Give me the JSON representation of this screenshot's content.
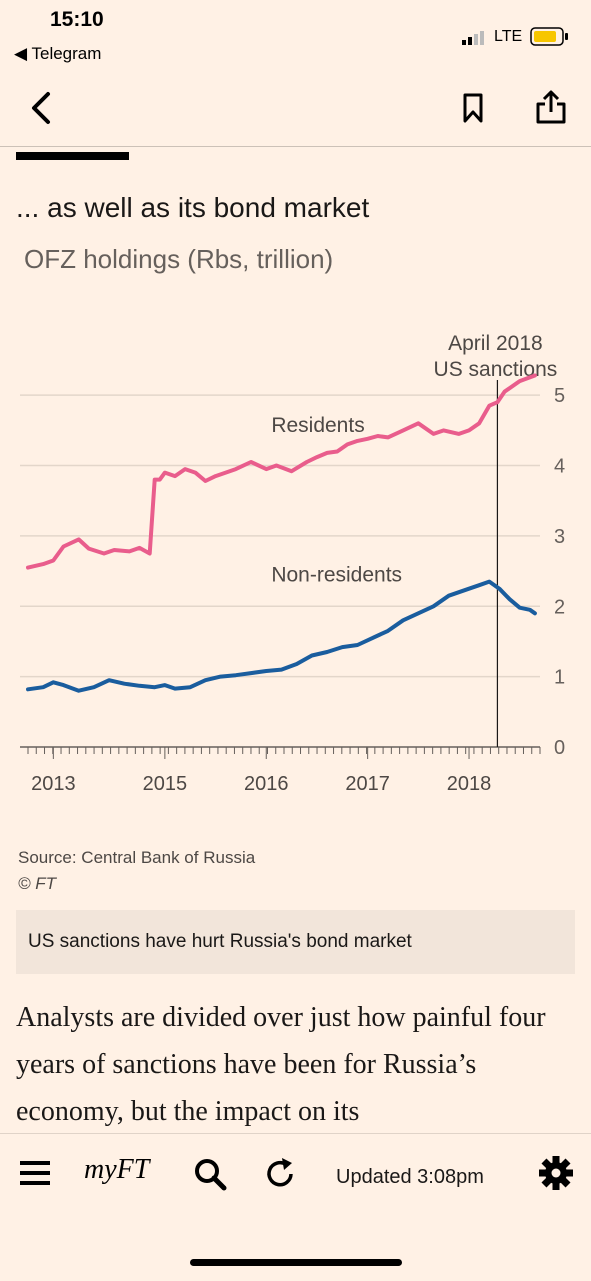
{
  "status_bar": {
    "time": "15:10",
    "back_app": "◀ Telegram",
    "network": "LTE"
  },
  "header": {
    "back_icon": "chevron-left-icon",
    "bookmark_icon": "bookmark-icon",
    "share_icon": "share-icon"
  },
  "figure": {
    "title": "... as well as its bond market",
    "subtitle": "OFZ holdings (Rbs, trillion)",
    "source": "Source: Central Bank of Russia",
    "copyright": "© FT"
  },
  "chart_data": {
    "type": "line",
    "x_ticks": [
      "2013",
      "2015",
      "2016",
      "2017",
      "2018"
    ],
    "x_tick_values": [
      2013.0,
      2014.1,
      2015.1,
      2016.1,
      2017.1
    ],
    "y_ticks": [
      "0",
      "1",
      "2",
      "3",
      "4",
      "5"
    ],
    "ylim": [
      0,
      5.5
    ],
    "xlim": [
      2012.75,
      2017.8
    ],
    "grid": true,
    "y_axis_side": "right",
    "annotation": {
      "x": 2017.38,
      "lines": [
        "April 2018",
        "US sanctions"
      ]
    },
    "series": [
      {
        "name": "Residents",
        "color": "#e95d8c",
        "x": [
          2012.75,
          2012.9,
          2013.0,
          2013.1,
          2013.25,
          2013.35,
          2013.5,
          2013.6,
          2013.75,
          2013.85,
          2013.95,
          2014.0,
          2014.05,
          2014.1,
          2014.2,
          2014.3,
          2014.4,
          2014.5,
          2014.6,
          2014.7,
          2014.8,
          2014.95,
          2015.1,
          2015.2,
          2015.35,
          2015.5,
          2015.6,
          2015.7,
          2015.8,
          2015.9,
          2016.0,
          2016.1,
          2016.2,
          2016.3,
          2016.45,
          2016.6,
          2016.75,
          2016.85,
          2017.0,
          2017.1,
          2017.2,
          2017.3,
          2017.38,
          2017.45,
          2017.6,
          2017.75
        ],
        "values": [
          2.55,
          2.6,
          2.65,
          2.85,
          2.95,
          2.82,
          2.75,
          2.8,
          2.78,
          2.83,
          2.75,
          3.8,
          3.8,
          3.9,
          3.85,
          3.95,
          3.9,
          3.78,
          3.85,
          3.9,
          3.95,
          4.05,
          3.95,
          4.0,
          3.92,
          4.05,
          4.12,
          4.18,
          4.2,
          4.3,
          4.35,
          4.38,
          4.42,
          4.4,
          4.5,
          4.6,
          4.45,
          4.5,
          4.45,
          4.5,
          4.6,
          4.85,
          4.9,
          5.05,
          5.2,
          5.28
        ]
      },
      {
        "name": "Non-residents",
        "color": "#1a5d9e",
        "x": [
          2012.75,
          2012.9,
          2013.0,
          2013.1,
          2013.25,
          2013.4,
          2013.55,
          2013.7,
          2013.85,
          2014.0,
          2014.1,
          2014.2,
          2014.35,
          2014.5,
          2014.65,
          2014.8,
          2014.95,
          2015.1,
          2015.25,
          2015.4,
          2015.55,
          2015.7,
          2015.85,
          2016.0,
          2016.15,
          2016.3,
          2016.45,
          2016.6,
          2016.75,
          2016.9,
          2017.0,
          2017.1,
          2017.2,
          2017.3,
          2017.4,
          2017.5,
          2017.6,
          2017.7,
          2017.75
        ],
        "values": [
          0.82,
          0.85,
          0.92,
          0.88,
          0.8,
          0.85,
          0.95,
          0.9,
          0.87,
          0.85,
          0.88,
          0.83,
          0.85,
          0.95,
          1.0,
          1.02,
          1.05,
          1.08,
          1.1,
          1.18,
          1.3,
          1.35,
          1.42,
          1.45,
          1.55,
          1.65,
          1.8,
          1.9,
          2.0,
          2.15,
          2.2,
          2.25,
          2.3,
          2.35,
          2.25,
          2.1,
          1.98,
          1.95,
          1.9
        ]
      }
    ]
  },
  "caption": "US sanctions have hurt Russia's bond market",
  "article": "Analysts are divided over just how painful four years of sanctions have been for Russia’s economy, but the impact on its",
  "bottom_nav": {
    "menu_icon": "hamburger-menu-icon",
    "myft_label": "myFT",
    "search_icon": "search-icon",
    "refresh_icon": "refresh-icon",
    "updated_label": "Updated 3:08pm",
    "settings_icon": "gear-icon"
  }
}
